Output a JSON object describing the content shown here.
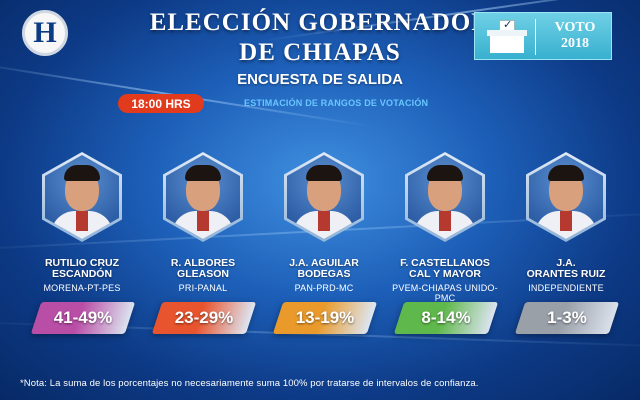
{
  "header": {
    "logo": "H",
    "title_line1": "ELECCIÓN GOBERNADOR",
    "title_line2": "DE CHIAPAS",
    "subtitle": "ENCUESTA DE SALIDA",
    "time": "18:00 HRS",
    "estimation": "ESTIMACIÓN DE RANGOS DE VOTACIÓN"
  },
  "badge": {
    "line1": "VOTO",
    "line2": "2018",
    "icon": "ballot-box-icon"
  },
  "candidates": [
    {
      "name1": "RUTILIO CRUZ",
      "name2": "ESCANDÓN",
      "party": "MORENA-PT-PES",
      "range": "41-49%",
      "color": "#b94ea6"
    },
    {
      "name1": "R. ALBORES",
      "name2": "GLEASON",
      "party": "PRI-PANAL",
      "range": "23-29%",
      "color": "#e8542d"
    },
    {
      "name1": "J.A. AGUILAR",
      "name2": "BODEGAS",
      "party": "PAN-PRD-MC",
      "range": "13-19%",
      "color": "#e99a2a"
    },
    {
      "name1": "F. CASTELLANOS",
      "name2": "CAL Y MAYOR",
      "party": "PVEM-CHIAPAS UNIDO-PMC",
      "range": "8-14%",
      "color": "#5fb84b"
    },
    {
      "name1": "J.A.",
      "name2": "ORANTES RUIZ",
      "party": "INDEPENDIENTE",
      "range": "1-3%",
      "color": "#9aa0a8"
    }
  ],
  "footnote": "*Nota: La suma de los porcentajes no necesariamente suma 100% por tratarse de intervalos de confianza."
}
